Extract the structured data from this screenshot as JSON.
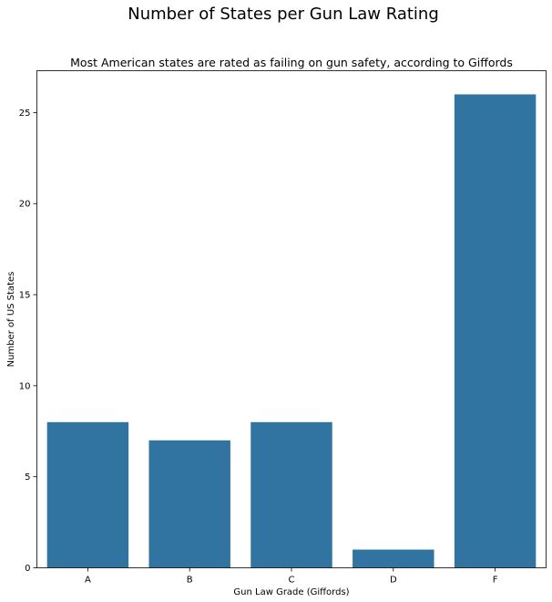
{
  "chart_data": {
    "type": "bar",
    "title": "Number of States per Gun Law Rating",
    "subtitle": "Most American states are rated as failing on gun safety, according to Giffords",
    "xlabel": "Gun Law Grade (Giffords)",
    "ylabel": "Number of US States",
    "categories": [
      "A",
      "B",
      "C",
      "D",
      "F"
    ],
    "values": [
      8,
      7,
      8,
      1,
      26
    ],
    "ylim": [
      0,
      27.3
    ],
    "yticks": [
      0,
      5,
      10,
      15,
      20,
      25
    ],
    "grid": false,
    "bar_color": "#3274a1"
  }
}
